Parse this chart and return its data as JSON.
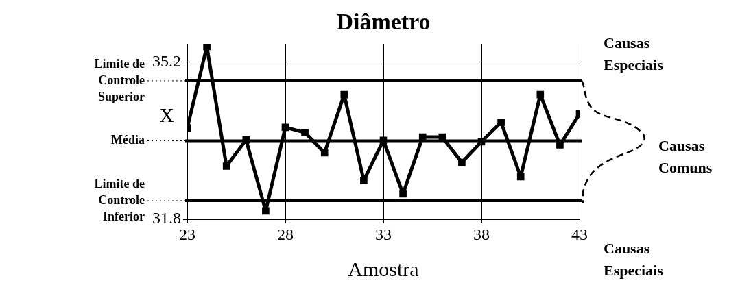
{
  "chart_data": {
    "type": "line",
    "title": "Diâmetro",
    "xlabel": "Amostra",
    "ylabel": "X",
    "x": [
      23,
      24,
      25,
      26,
      27,
      28,
      29,
      30,
      31,
      32,
      33,
      34,
      35,
      36,
      37,
      38,
      39,
      40,
      41,
      42,
      43
    ],
    "series": [
      {
        "color": "#000000",
        "values": [
          33.78,
          35.54,
          32.95,
          33.52,
          31.98,
          33.79,
          33.68,
          33.24,
          34.5,
          32.64,
          33.51,
          32.35,
          33.58,
          33.58,
          33.03,
          33.48,
          33.9,
          32.72,
          34.5,
          33.41,
          34.08
        ]
      }
    ],
    "xlim": [
      23,
      43
    ],
    "xticks": [
      23,
      28,
      33,
      38,
      43
    ],
    "ylim": [
      31.8,
      35.6
    ],
    "yticks": [
      31.8,
      35.2
    ],
    "ref_lines": [
      {
        "axis": "y",
        "value": 34.8,
        "label": "Limite de Controle Superior",
        "color": "#000000"
      },
      {
        "axis": "y",
        "value": 33.5,
        "label": "Média",
        "color": "#000000"
      },
      {
        "axis": "y",
        "value": 32.2,
        "label": "Limite de Controle Inferior",
        "color": "#000000"
      }
    ],
    "annotations": [
      "Causas Especiais",
      "Causas Comuns",
      "Causas Especiais"
    ],
    "grid": true,
    "legend": false,
    "marker": "square",
    "line_style": "solid"
  }
}
